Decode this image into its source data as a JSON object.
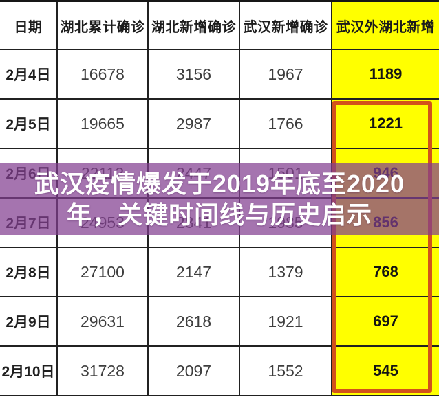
{
  "table": {
    "columns": [
      "日期",
      "湖北累计确诊",
      "湖北新增确诊",
      "武汉新增确诊",
      "武汉外湖北新增"
    ],
    "rows": [
      [
        "2月4日",
        "16678",
        "3156",
        "1967",
        "1189"
      ],
      [
        "2月5日",
        "19665",
        "2987",
        "1766",
        "1221"
      ],
      [
        "2月6日",
        "22112",
        "2447",
        "1501",
        "946"
      ],
      [
        "2月7日",
        "24953",
        "2841",
        "1985",
        "856"
      ],
      [
        "2月8日",
        "27100",
        "2147",
        "1379",
        "768"
      ],
      [
        "2月9日",
        "29631",
        "2618",
        "1921",
        "697"
      ],
      [
        "2月10日",
        "31728",
        "2097",
        "1552",
        "545"
      ]
    ]
  },
  "banner": {
    "line1": "武汉疫情爆发于2019年底至2020",
    "line2": "年，关键时间线与历史启示"
  },
  "colors": {
    "highlight_column_bg": "#ffff00",
    "highlight_border": "#d2521b",
    "overlay_purple": "rgba(130,63,144,0.72)",
    "grid_line": "#212121",
    "banner_text": "#ffffff"
  },
  "chart_data": {
    "type": "table",
    "title": "武汉疫情爆发于2019年底至2020年，关键时间线与历史启示",
    "columns": [
      "日期",
      "湖北累计确诊",
      "湖北新增确诊",
      "武汉新增确诊",
      "武汉外湖北新增"
    ],
    "rows": [
      [
        "2月4日",
        16678,
        3156,
        1967,
        1189
      ],
      [
        "2月5日",
        19665,
        2987,
        1766,
        1221
      ],
      [
        "2月6日",
        22112,
        2447,
        1501,
        946
      ],
      [
        "2月7日",
        24953,
        2841,
        1985,
        856
      ],
      [
        "2月8日",
        27100,
        2147,
        1379,
        768
      ],
      [
        "2月9日",
        29631,
        2618,
        1921,
        697
      ],
      [
        "2月10日",
        31728,
        2097,
        1552,
        545
      ]
    ],
    "highlighted_column": "武汉外湖北新增",
    "highlighted_cells_range": "2月5日–2月10日 武汉外湖北新增"
  }
}
